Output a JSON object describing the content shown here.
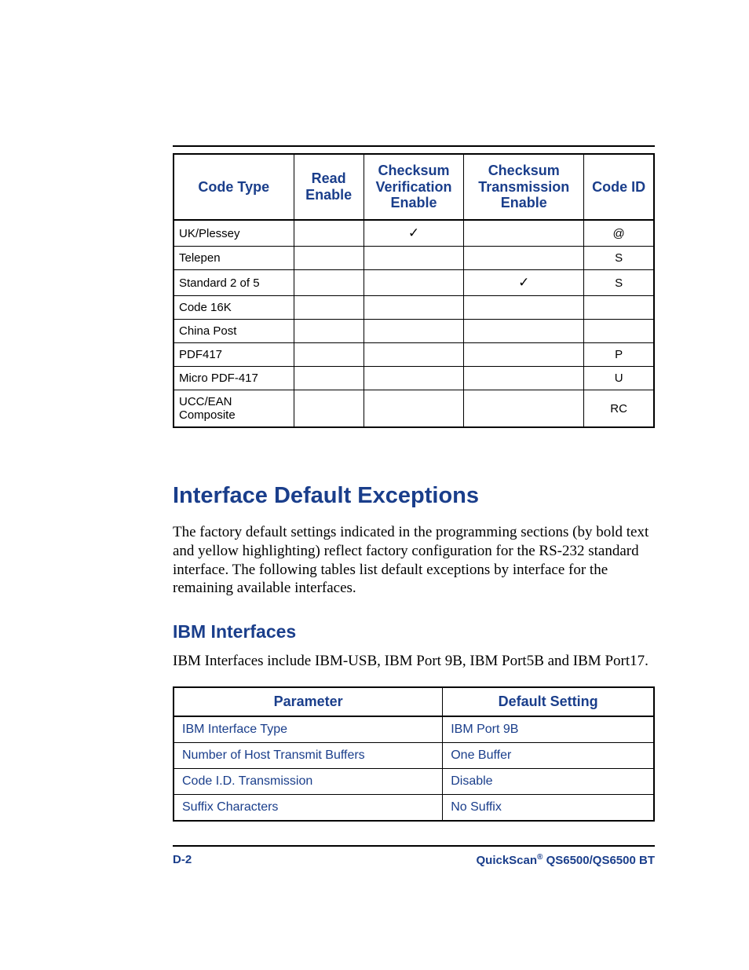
{
  "colors": {
    "heading": "#1a3e8b",
    "body_text": "#000000",
    "table_border": "#000000",
    "background": "#ffffff"
  },
  "typography": {
    "heading_font": "Verdana",
    "body_font": "Times New Roman",
    "table_font": "Arial",
    "h1_size_pt": 22,
    "h2_size_pt": 17,
    "body_size_pt": 14,
    "table_header_size_pt": 13,
    "table_cell_size_pt": 11
  },
  "table1": {
    "headers": {
      "code_type": "Code Type",
      "read_enable": "Read Enable",
      "checksum_verification": "Checksum Verification Enable",
      "checksum_transmission": "Checksum Transmission Enable",
      "code_id": "Code ID"
    },
    "check_symbol": "✓",
    "rows": [
      {
        "code_type": "UK/Plessey",
        "read_enable": "",
        "chk_ver": "✓",
        "chk_tx": "",
        "code_id": "@"
      },
      {
        "code_type": "Telepen",
        "read_enable": "",
        "chk_ver": "",
        "chk_tx": "",
        "code_id": "S"
      },
      {
        "code_type": "Standard 2 of 5",
        "read_enable": "",
        "chk_ver": "",
        "chk_tx": "✓",
        "code_id": "S"
      },
      {
        "code_type": "Code 16K",
        "read_enable": "",
        "chk_ver": "",
        "chk_tx": "",
        "code_id": ""
      },
      {
        "code_type": "China Post",
        "read_enable": "",
        "chk_ver": "",
        "chk_tx": "",
        "code_id": ""
      },
      {
        "code_type": "PDF417",
        "read_enable": "",
        "chk_ver": "",
        "chk_tx": "",
        "code_id": "P"
      },
      {
        "code_type": "Micro PDF-417",
        "read_enable": "",
        "chk_ver": "",
        "chk_tx": "",
        "code_id": "U"
      },
      {
        "code_type": "UCC/EAN Composite",
        "read_enable": "",
        "chk_ver": "",
        "chk_tx": "",
        "code_id": "RC"
      }
    ]
  },
  "section": {
    "title": "Interface Default Exceptions",
    "paragraph": "The factory default settings indicated in the programming sections (by bold text and yellow highlighting) reflect factory configuration for the RS-232 standard interface. The following tables list default exceptions by interface for the remaining available interfaces."
  },
  "subsection": {
    "title": "IBM Interfaces",
    "paragraph": "IBM Interfaces include IBM-USB, IBM Port 9B, IBM Port5B and IBM Port17."
  },
  "table2": {
    "headers": {
      "parameter": "Parameter",
      "default": "Default Setting"
    },
    "rows": [
      {
        "parameter": "IBM Interface Type",
        "default": "IBM Port 9B"
      },
      {
        "parameter": "Number of Host Transmit Buffers",
        "default": "One Buffer"
      },
      {
        "parameter": "Code I.D. Transmission",
        "default": "Disable"
      },
      {
        "parameter": "Suffix Characters",
        "default": "No Suffix"
      }
    ]
  },
  "footer": {
    "left": "D-2",
    "right_prefix": "QuickScan",
    "right_reg": "®",
    "right_suffix": " QS6500/QS6500 BT"
  }
}
